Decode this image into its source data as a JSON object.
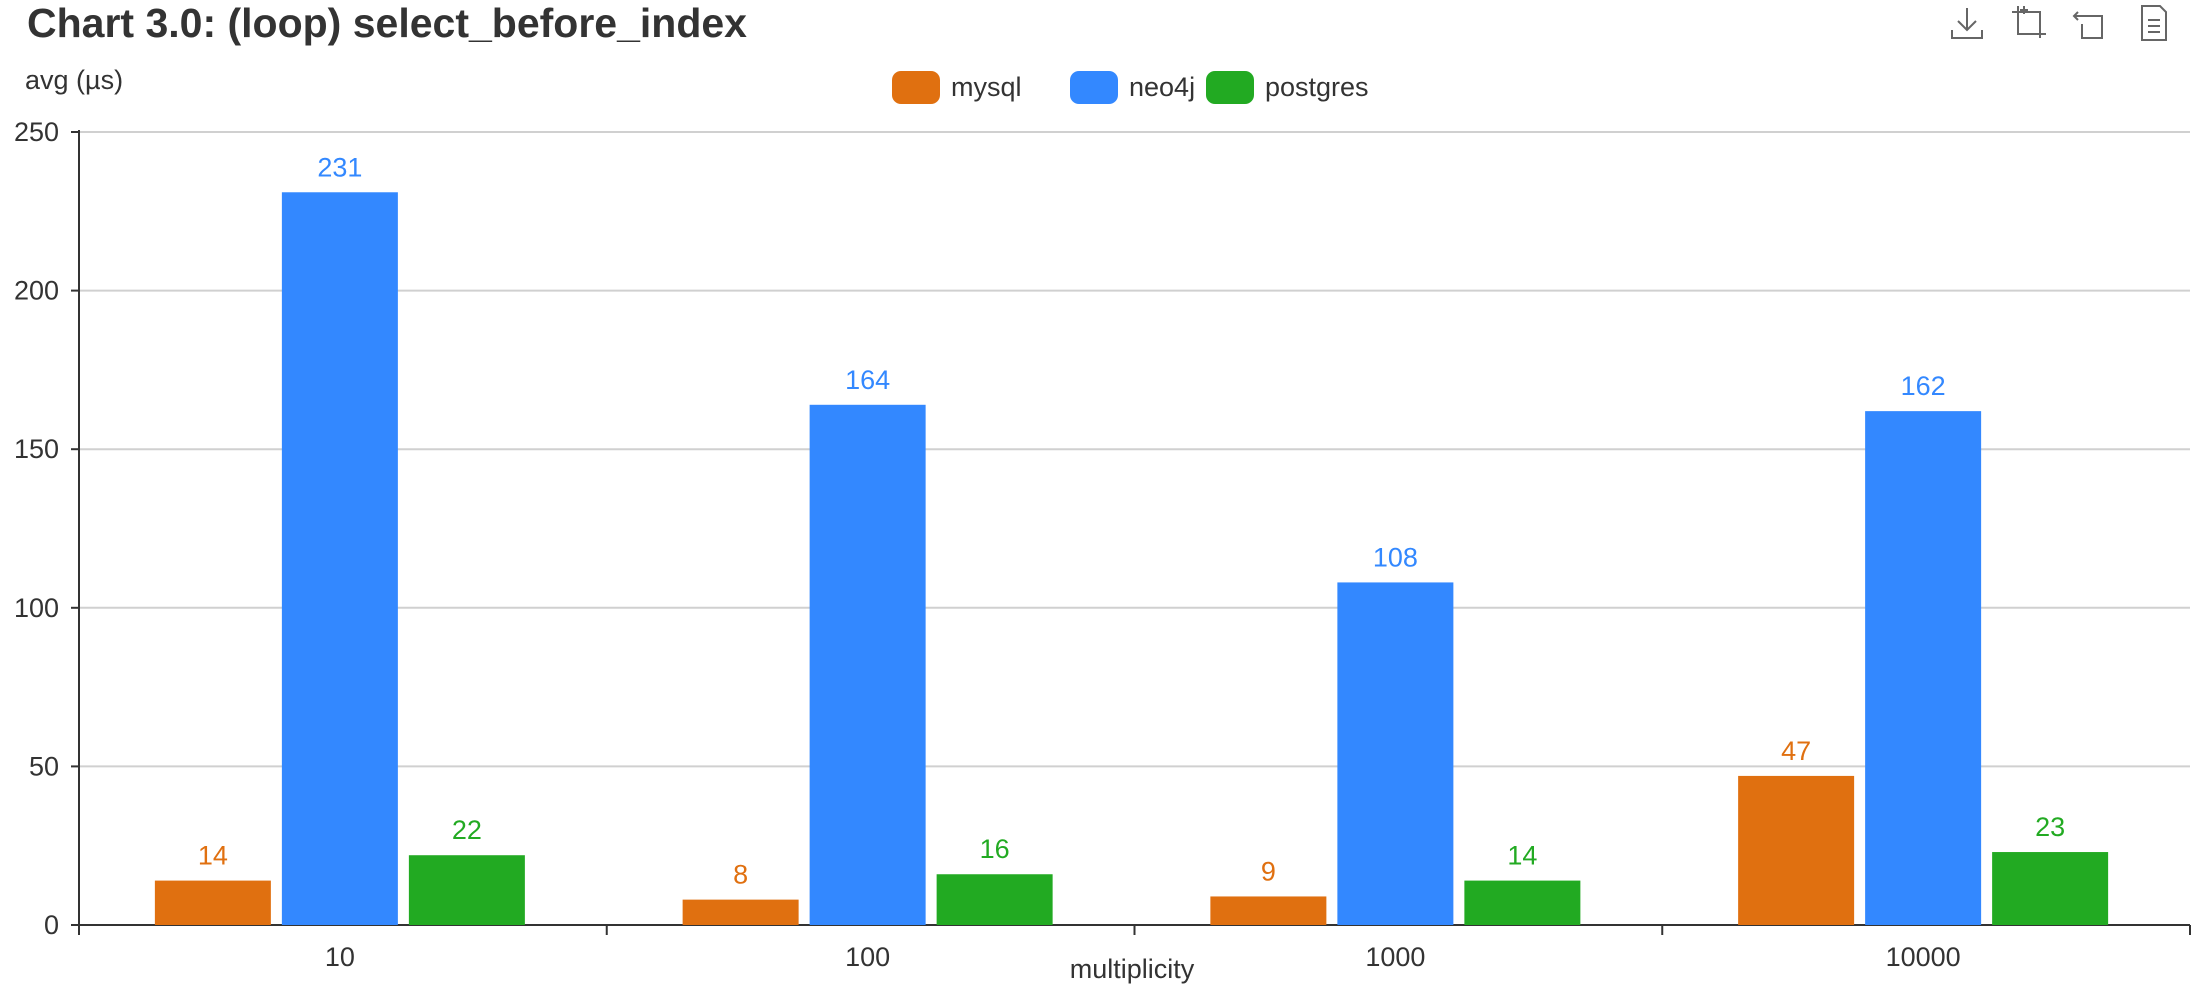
{
  "toolbox": {
    "icons": [
      "download-icon",
      "zoom-icon",
      "zoom-reset-icon",
      "data-view-icon"
    ]
  },
  "chart_data": {
    "type": "bar",
    "title": "Chart 3.0: (loop) select_before_index",
    "xlabel": "multiplicity",
    "ylabel": "avg (µs)",
    "categories": [
      "10",
      "100",
      "1000",
      "10000"
    ],
    "series": [
      {
        "name": "mysql",
        "values": [
          14,
          8,
          9,
          47
        ],
        "color": "#E07010"
      },
      {
        "name": "neo4j",
        "values": [
          231,
          164,
          108,
          162
        ],
        "color": "#3388FF"
      },
      {
        "name": "postgres",
        "values": [
          22,
          16,
          14,
          23
        ],
        "color": "#22AA22"
      }
    ],
    "ylim": [
      0,
      250
    ],
    "yticks": [
      0,
      50,
      100,
      150,
      200,
      250
    ],
    "grid": true,
    "legend_position": "top-center",
    "data_labels": true
  }
}
